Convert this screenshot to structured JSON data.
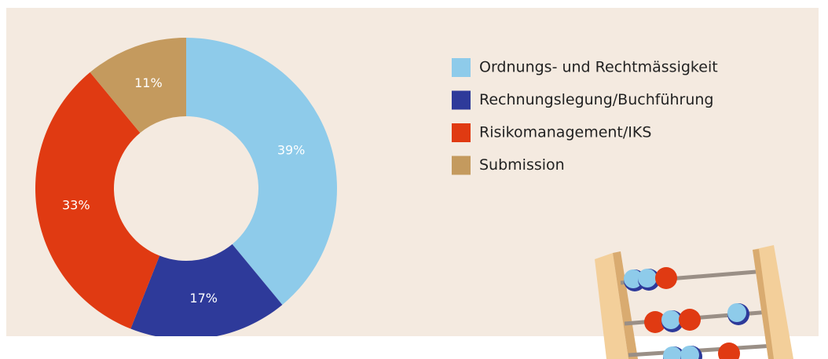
{
  "chart_data": {
    "type": "pie",
    "categories": [
      "Ordnungs- und Rechtmässigkeit",
      "Rechnungslegung/Buchführung",
      "Risikomanagement/IKS",
      "Submission"
    ],
    "values": [
      39,
      17,
      33,
      11
    ],
    "value_labels": [
      "39%",
      "17%",
      "33%",
      "11%"
    ],
    "colors": [
      "#8ecbea",
      "#2e3a9a",
      "#e03a12",
      "#c49a5e"
    ],
    "legend": "right"
  }
}
